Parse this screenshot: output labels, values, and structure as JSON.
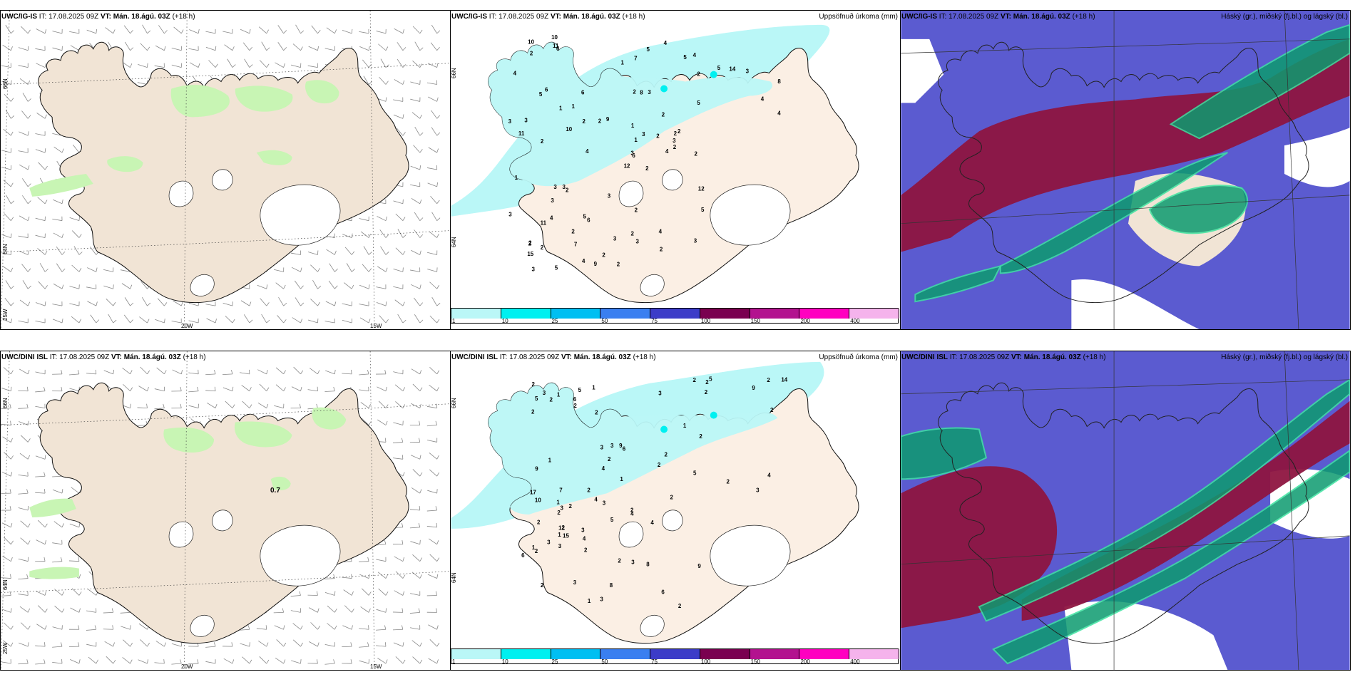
{
  "colors": {
    "land": "#f1e4d5",
    "land_pale": "#fbefe4",
    "green": "#c8f5b4",
    "glacier": "#ffffff",
    "precip_bins": [
      "#baf7f7",
      "#00f0f0",
      "#00bff2",
      "#3a7ff0",
      "#3c3cc8",
      "#7a0050",
      "#b3128f",
      "#ff00c0",
      "#f5b3ec"
    ],
    "cloud_high": "#0d9b6f",
    "cloud_mid": "#8e1540",
    "cloud_low": "#5b5bd0"
  },
  "panels": {
    "r1c1": {
      "model": "UWC/IG-IS",
      "it_label": "IT:",
      "it_value": "17.08.2025 09Z",
      "vt_label": "VT:",
      "vt_value": "Mán. 18.ágú. 03Z",
      "lead": "(+18 h)",
      "title_right": ""
    },
    "r1c2": {
      "model": "UWC/IG-IS",
      "it_label": "IT:",
      "it_value": "17.08.2025 09Z",
      "vt_label": "VT:",
      "vt_value": "Mán. 18.ágú. 03Z",
      "lead": "(+18 h)",
      "title_right": "Uppsöfnuð úrkoma (mm)"
    },
    "r1c3": {
      "model": "UWC/IG-IS",
      "it_label": "IT:",
      "it_value": "17.08.2025 09Z",
      "vt_label": "VT:",
      "vt_value": "Mán. 18.ágú. 03Z",
      "lead": "(+18 h)",
      "title_right": "Háský (gr.), miðský (fj.bl.) og lágský (bl.)"
    },
    "r2c1": {
      "model": "UWC/DINI ISL",
      "it_label": "IT:",
      "it_value": "17.08.2025 09Z",
      "vt_label": "VT:",
      "vt_value": "Mán. 18.ágú. 03Z",
      "lead": "(+18 h)",
      "title_right": "",
      "annotation": "0.7"
    },
    "r2c2": {
      "model": "UWC/DINI ISL",
      "it_label": "IT:",
      "it_value": "17.08.2025 09Z",
      "vt_label": "VT:",
      "vt_value": "Mán. 18.ágú. 03Z",
      "lead": "(+18 h)",
      "title_right": "Uppsöfnuð úrkoma (mm)"
    },
    "r2c3": {
      "model": "UWC/DINI ISL",
      "it_label": "IT:",
      "it_value": "17.08.2025 09Z",
      "vt_label": "VT:",
      "vt_value": "Mán. 18.ágú. 03Z",
      "lead": "(+18 h)",
      "title_right": "Háský (gr.), miðský (fj.bl.) og lágský (bl.)"
    }
  },
  "grid_labels": {
    "lat_66": "66N",
    "lat_64": "64N",
    "lat_25w": "25W",
    "lon_20w": "20W",
    "lon_15w": "15W"
  },
  "colorbar": {
    "ticks": [
      "1",
      "10",
      "25",
      "50",
      "75",
      "100",
      "150",
      "200",
      "400"
    ]
  },
  "precip_labels_top": [
    "2",
    "5",
    "6",
    "2",
    "2",
    "6",
    "4",
    "3",
    "2",
    "4",
    "6",
    "2",
    "2",
    "8",
    "12",
    "5",
    "5",
    "2",
    "2",
    "4",
    "9",
    "15",
    "7",
    "8",
    "2",
    "2",
    "6",
    "7",
    "11",
    "12",
    "4",
    "3",
    "2",
    "1",
    "6",
    "5",
    "5",
    "9",
    "3",
    "3",
    "4",
    "2",
    "10",
    "5",
    "4",
    "3",
    "3",
    "3",
    "3",
    "2",
    "11",
    "4",
    "4",
    "3",
    "3",
    "2",
    "11",
    "10",
    "4",
    "3",
    "5",
    "4",
    "3",
    "1",
    "14",
    "10",
    "5",
    "1",
    "3",
    "3",
    "2",
    "2",
    "3",
    "2",
    "2",
    "2",
    "1",
    "1",
    "1",
    "2",
    "2",
    "2",
    "2",
    "3"
  ],
  "precip_labels_bottom": [
    "2",
    "3",
    "2",
    "5",
    "6",
    "3",
    "2",
    "2",
    "3",
    "2",
    "2",
    "17",
    "5",
    "8",
    "2",
    "4",
    "4",
    "2",
    "9",
    "15",
    "14",
    "9",
    "4",
    "5",
    "2",
    "6",
    "12",
    "10",
    "2",
    "2",
    "6",
    "9",
    "2",
    "4",
    "3",
    "4",
    "1",
    "7",
    "8",
    "3",
    "2",
    "5",
    "3",
    "3",
    "3",
    "2",
    "6",
    "3",
    "5",
    "9",
    "4",
    "3",
    "2",
    "1",
    "3",
    "1",
    "2",
    "2",
    "3",
    "1",
    "2",
    "2",
    "2",
    "2",
    "3",
    "1",
    "2",
    "2",
    "2",
    "1",
    "1",
    "1",
    "1",
    "2",
    "2",
    "2"
  ]
}
